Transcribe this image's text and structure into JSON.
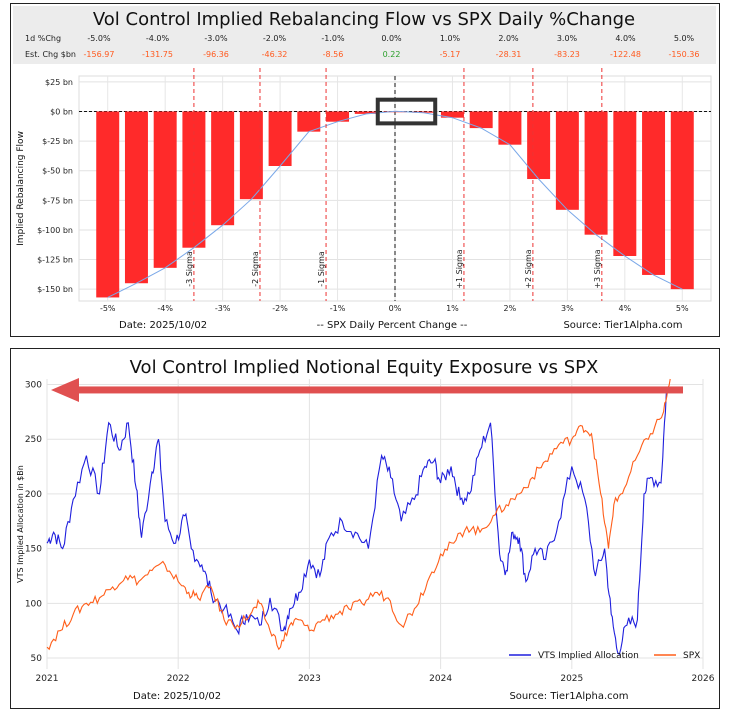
{
  "chart_data": [
    {
      "type": "bar",
      "title": "Vol Control Implied Rebalancing Flow vs SPX Daily %Change",
      "table": {
        "row1_label": "1d %Chg",
        "row2_label": "Est. Chg $bn",
        "pct_labels": [
          "-5.0%",
          "-4.0%",
          "-3.0%",
          "-2.0%",
          "-1.0%",
          "0.0%",
          "1.0%",
          "2.0%",
          "3.0%",
          "4.0%",
          "5.0%"
        ],
        "chg_labels": [
          "-156.97",
          "-131.75",
          "-96.36",
          "-46.32",
          "-8.56",
          "0.22",
          "-5.17",
          "-28.31",
          "-83.23",
          "-122.48",
          "-150.36"
        ],
        "positive_color": "#2ca02c",
        "negative_color": "#ff5a1f"
      },
      "categories": [
        "-5.0%",
        "-4.5%",
        "-4.0%",
        "-3.5%",
        "-3.0%",
        "-2.5%",
        "-2.0%",
        "-1.5%",
        "-1.0%",
        "-0.5%",
        "0.0%",
        "0.5%",
        "1.0%",
        "1.5%",
        "2.0%",
        "2.5%",
        "3.0%",
        "3.5%",
        "4.0%",
        "4.5%",
        "5.0%"
      ],
      "x_pct": [
        -5.0,
        -4.5,
        -4.0,
        -3.5,
        -3.0,
        -2.5,
        -2.0,
        -1.5,
        -1.0,
        -0.5,
        0.0,
        0.5,
        1.0,
        1.5,
        2.0,
        2.5,
        3.0,
        3.5,
        4.0,
        4.5,
        5.0
      ],
      "values": [
        -157,
        -145,
        -132,
        -115,
        -96,
        -74,
        -46,
        -17,
        -8.6,
        -2,
        0.22,
        -1,
        -5.2,
        -14,
        -28,
        -57,
        -83,
        -104,
        -122,
        -138,
        -150
      ],
      "bar_color": "#ff2a2a",
      "curve_color": "#7aa8e8",
      "ylabel": "Implied Rebalancing Flow",
      "xlabel": "-- SPX Daily Percent Change --",
      "ylim": [
        -160,
        30
      ],
      "xlim": [
        -5.5,
        5.5
      ],
      "yticks": [
        25,
        0,
        -25,
        -50,
        -75,
        -100,
        -125,
        -150
      ],
      "ytick_labels": [
        "$25 bn",
        "$0 bn",
        "$-25 bn",
        "$-50 bn",
        "$-75 bn",
        "$-100 bn",
        "$-125 bn",
        "$-150 bn"
      ],
      "xticks": [
        -5,
        -4,
        -3,
        -2,
        -1,
        0,
        1,
        2,
        3,
        4,
        5
      ],
      "xtick_labels": [
        "-5%",
        "-4%",
        "-3%",
        "-2%",
        "-1%",
        "0%",
        "1%",
        "2%",
        "3%",
        "4%",
        "5%"
      ],
      "sigma_lines": [
        {
          "x": -3.5,
          "label": "-3 Sigma"
        },
        {
          "x": -2.35,
          "label": "-2 Sigma"
        },
        {
          "x": -1.2,
          "label": "-1 Sigma"
        },
        {
          "x": 1.2,
          "label": "+1 Sigma"
        },
        {
          "x": 2.4,
          "label": "+2 Sigma"
        },
        {
          "x": 3.6,
          "label": "+3 Sigma"
        }
      ],
      "highlight_box": {
        "x_from": -0.3,
        "x_to": 0.7,
        "y_from": -10,
        "y_to": 10
      },
      "date_label": "Date: 2025/10/02",
      "source_label": "Source: Tier1Alpha.com",
      "grid": true
    },
    {
      "type": "line",
      "title": "Vol Control Implied Notional Equity Exposure vs SPX",
      "ylabel": "VTS Implied Allocation in $Bn",
      "ylim": [
        40,
        305
      ],
      "yticks": [
        50,
        100,
        150,
        200,
        250,
        300
      ],
      "xlim": [
        2021.0,
        2026.0
      ],
      "xticks": [
        2021,
        2022,
        2023,
        2024,
        2025,
        2026
      ],
      "xtick_labels": [
        "2021",
        "2022",
        "2023",
        "2024",
        "2025",
        "2026"
      ],
      "series": [
        {
          "name": "VTS Implied Allocation",
          "color": "#1f1fdd",
          "x": [
            2021.0,
            2021.05,
            2021.12,
            2021.2,
            2021.3,
            2021.4,
            2021.47,
            2021.55,
            2021.62,
            2021.68,
            2021.72,
            2021.8,
            2021.85,
            2021.9,
            2021.98,
            2022.05,
            2022.1,
            2022.18,
            2022.25,
            2022.35,
            2022.45,
            2022.52,
            2022.62,
            2022.7,
            2022.8,
            2022.85,
            2022.92,
            2023.0,
            2023.08,
            2023.15,
            2023.25,
            2023.35,
            2023.45,
            2023.55,
            2023.62,
            2023.7,
            2023.8,
            2023.88,
            2023.95,
            2024.0,
            2024.08,
            2024.15,
            2024.22,
            2024.3,
            2024.38,
            2024.45,
            2024.5,
            2024.55,
            2024.6,
            2024.65,
            2024.72,
            2024.8,
            2024.9,
            2025.0,
            2025.1,
            2025.18,
            2025.25,
            2025.3,
            2025.35,
            2025.42,
            2025.5,
            2025.55,
            2025.6,
            2025.68,
            2025.72
          ],
          "values": [
            155,
            165,
            150,
            195,
            235,
            200,
            265,
            240,
            265,
            205,
            160,
            220,
            250,
            175,
            155,
            180,
            150,
            135,
            110,
            95,
            75,
            90,
            80,
            105,
            75,
            95,
            110,
            140,
            125,
            160,
            175,
            165,
            150,
            235,
            215,
            175,
            195,
            225,
            230,
            210,
            225,
            195,
            200,
            240,
            265,
            145,
            130,
            165,
            160,
            120,
            150,
            140,
            175,
            225,
            195,
            125,
            150,
            90,
            55,
            80,
            85,
            200,
            215,
            210,
            292
          ]
        },
        {
          "name": "SPX",
          "color": "#ff5e1a",
          "x": [
            2021.0,
            2021.1,
            2021.2,
            2021.3,
            2021.4,
            2021.5,
            2021.6,
            2021.7,
            2021.8,
            2021.9,
            2022.0,
            2022.08,
            2022.15,
            2022.25,
            2022.35,
            2022.45,
            2022.55,
            2022.62,
            2022.7,
            2022.78,
            2022.85,
            2022.92,
            2023.0,
            2023.1,
            2023.2,
            2023.3,
            2023.4,
            2023.5,
            2023.6,
            2023.7,
            2023.8,
            2023.9,
            2024.0,
            2024.1,
            2024.2,
            2024.3,
            2024.4,
            2024.5,
            2024.6,
            2024.7,
            2024.8,
            2024.9,
            2025.0,
            2025.08,
            2025.15,
            2025.22,
            2025.28,
            2025.32,
            2025.4,
            2025.5,
            2025.6,
            2025.7,
            2025.75
          ],
          "values": [
            60,
            75,
            90,
            100,
            105,
            115,
            125,
            120,
            130,
            135,
            120,
            110,
            105,
            115,
            85,
            80,
            90,
            100,
            75,
            60,
            80,
            85,
            75,
            85,
            90,
            95,
            100,
            110,
            105,
            80,
            95,
            120,
            145,
            155,
            170,
            165,
            180,
            190,
            200,
            215,
            230,
            245,
            250,
            262,
            255,
            200,
            150,
            190,
            205,
            235,
            255,
            275,
            305
          ]
        }
      ],
      "legend": [
        "VTS Implied Allocation",
        "SPX"
      ],
      "legend_loc": "bottom-right",
      "arrow_color": "#e05050",
      "date_label": "Date: 2025/10/02",
      "source_label": "Source: Tier1Alpha.com",
      "grid": true
    }
  ]
}
